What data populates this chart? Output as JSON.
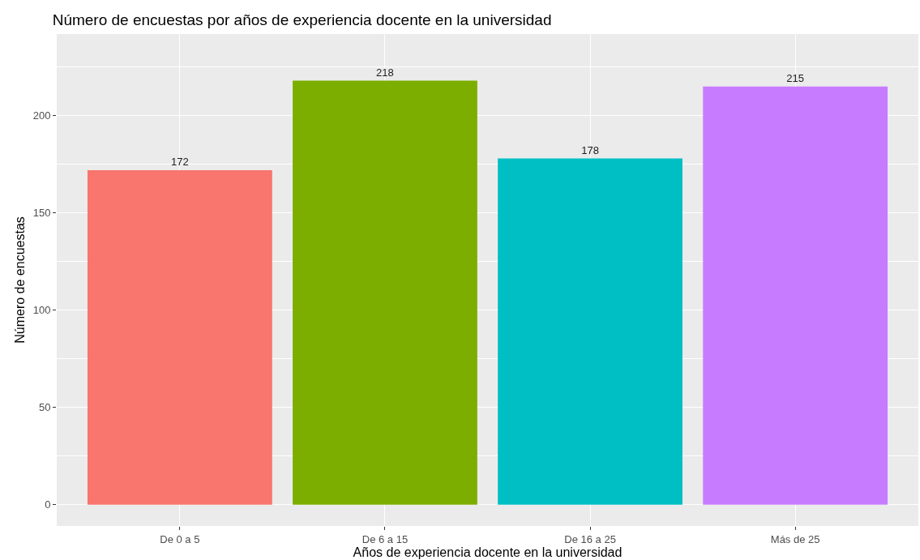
{
  "chart_data": {
    "type": "bar",
    "title": "Número de encuestas por años de experiencia docente en la universidad",
    "xlabel": "Años de experiencia docente en la universidad",
    "ylabel": "Número de encuestas",
    "categories": [
      "De 0 a 5",
      "De 6 a 15",
      "De 16 a 25",
      "Más de 25"
    ],
    "values": [
      172,
      218,
      178,
      215
    ],
    "colors": [
      "#f8766d",
      "#7cae00",
      "#00bfc4",
      "#c77cff"
    ],
    "ylim": [
      -10.9,
      242
    ],
    "yticks": [
      0,
      {
        "value": 25,
        "label": null
      },
      50,
      {
        "value": 75,
        "label": null
      },
      100,
      {
        "value": 125,
        "label": null
      },
      150,
      {
        "value": 175,
        "label": null
      },
      200,
      {
        "value": 225,
        "label": null
      }
    ],
    "grid": true,
    "data_labels": true,
    "legend": false
  }
}
